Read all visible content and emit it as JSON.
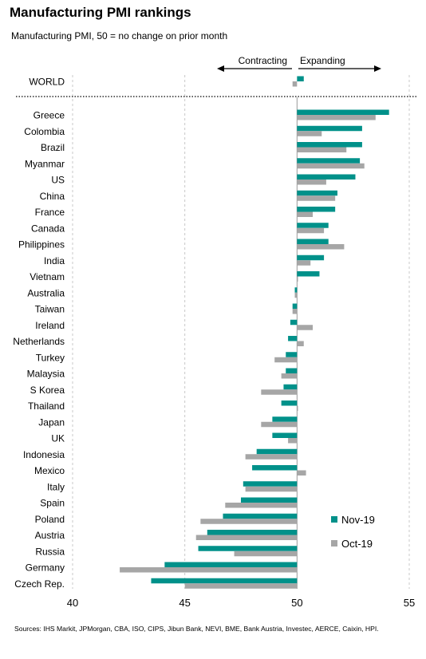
{
  "title": "Manufacturing PMI rankings",
  "subtitle": "Manufacturing PMI, 50 = no change on prior month",
  "sources": "Sources: IHS Markit, JPMorgan, CBA, ISO, CIPS, Jibun Bank, NEVI, BME, Bank Austria, Investec, AERCE, Caixin, HPI.",
  "chart_data": {
    "type": "bar",
    "orientation": "horizontal",
    "baseline": 50,
    "xlim": [
      40,
      55
    ],
    "xticks": [
      "40",
      "45",
      "50",
      "55"
    ],
    "grid": "vertical dashed",
    "legend": "bottom-right",
    "annotations": {
      "left": "Contracting",
      "right": "Expanding"
    },
    "world": {
      "label": "WORLD",
      "values": [
        50.3,
        49.8
      ]
    },
    "categories": [
      "Greece",
      "Colombia",
      "Brazil",
      "Myanmar",
      "US",
      "China",
      "France",
      "Canada",
      "Philippines",
      "India",
      "Vietnam",
      "Australia",
      "Taiwan",
      "Ireland",
      "Netherlands",
      "Turkey",
      "Malaysia",
      "S Korea",
      "Thailand",
      "Japan",
      "UK",
      "Indonesia",
      "Mexico",
      "Italy",
      "Spain",
      "Poland",
      "Austria",
      "Russia",
      "Germany",
      "Czech Rep."
    ],
    "series": [
      {
        "name": "Nov-19",
        "color": "#00918a",
        "values": [
          54.1,
          52.9,
          52.9,
          52.8,
          52.6,
          51.8,
          51.7,
          51.4,
          51.4,
          51.2,
          51.0,
          49.9,
          49.8,
          49.7,
          49.6,
          49.5,
          49.5,
          49.4,
          49.3,
          48.9,
          48.9,
          48.2,
          48.0,
          47.6,
          47.5,
          46.7,
          46.0,
          45.6,
          44.1,
          43.5
        ]
      },
      {
        "name": "Oct-19",
        "color": "#a6a6a6",
        "values": [
          53.5,
          51.1,
          52.2,
          53.0,
          51.3,
          51.7,
          50.7,
          51.2,
          52.1,
          50.6,
          50.0,
          49.9,
          49.8,
          50.7,
          50.3,
          49.0,
          49.3,
          48.4,
          50.0,
          48.4,
          49.6,
          47.7,
          50.4,
          47.7,
          46.8,
          45.7,
          45.5,
          47.2,
          42.1,
          45.0
        ]
      }
    ]
  }
}
